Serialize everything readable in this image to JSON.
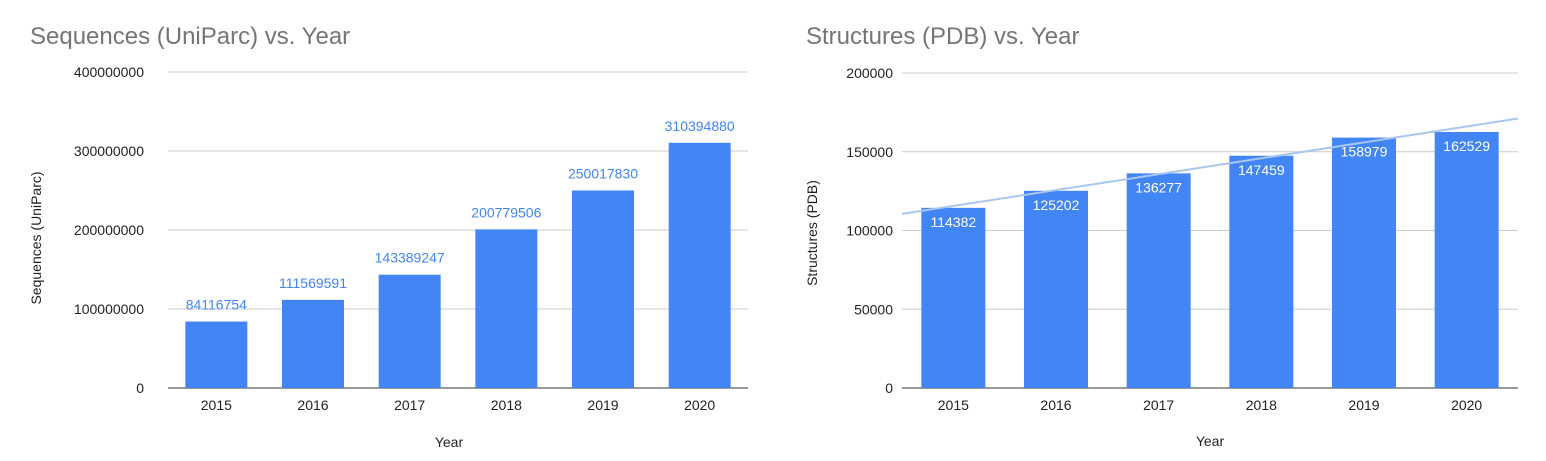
{
  "chart_data": [
    {
      "type": "bar",
      "title": "Sequences (UniParc) vs. Year",
      "xlabel": "Year",
      "ylabel": "Sequences (UniParc)",
      "categories": [
        "2015",
        "2016",
        "2017",
        "2018",
        "2019",
        "2020"
      ],
      "values": [
        84116754,
        111569591,
        143389247,
        200779506,
        250017830,
        310394880
      ],
      "data_labels": [
        "84116754",
        "111569591",
        "143389247",
        "200779506",
        "250017830",
        "310394880"
      ],
      "ylim": [
        0,
        400000000
      ],
      "yticks": [
        "0",
        "100000000",
        "200000000",
        "300000000",
        "400000000"
      ],
      "label_position": "above",
      "grid": true,
      "legend": "none",
      "bar_color": "#4285f4"
    },
    {
      "type": "bar",
      "title": "Structures (PDB) vs. Year",
      "xlabel": "Year",
      "ylabel": "Structures (PDB)",
      "categories": [
        "2015",
        "2016",
        "2017",
        "2018",
        "2019",
        "2020"
      ],
      "values": [
        114382,
        125202,
        136277,
        147459,
        158979,
        162529
      ],
      "data_labels": [
        "114382",
        "125202",
        "136277",
        "147459",
        "158979",
        "162529"
      ],
      "ylim": [
        0,
        200000
      ],
      "yticks": [
        "0",
        "50000",
        "100000",
        "150000",
        "200000"
      ],
      "label_position": "inside-top",
      "grid": true,
      "legend": "none",
      "trendline": {
        "type": "linear",
        "color": "#a8c7f0"
      },
      "bar_color": "#4285f4"
    }
  ]
}
